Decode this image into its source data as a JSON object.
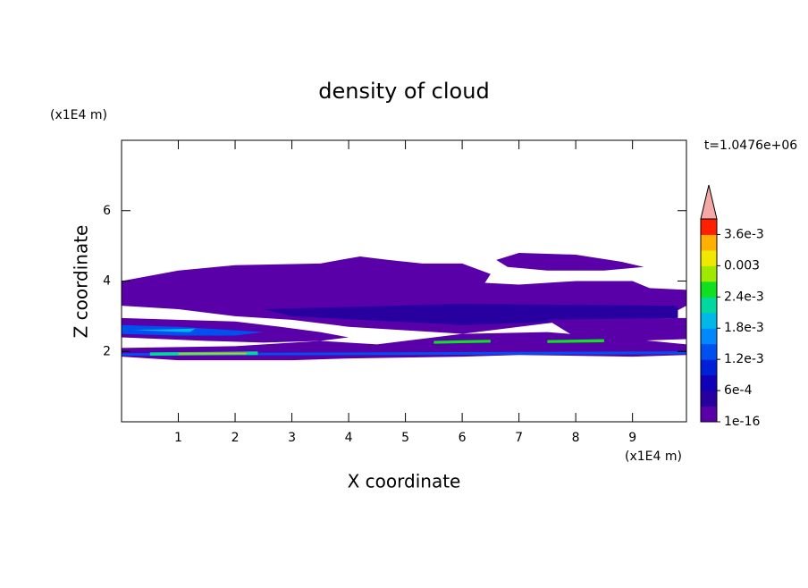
{
  "chart_data": {
    "type": "contour",
    "title": "density of cloud",
    "xlabel": "X coordinate",
    "ylabel": "Z coordinate",
    "xunit": "(x1E4 m)",
    "yunit": "(x1E4 m)",
    "annotation": "t=1.0476e+06",
    "xlim": [
      0,
      9.95
    ],
    "ylim": [
      0,
      8
    ],
    "xticks": [
      1,
      2,
      3,
      4,
      5,
      6,
      7,
      8,
      9
    ],
    "yticks": [
      2,
      4,
      6
    ],
    "colorbar": {
      "clim": [
        1e-16,
        0.0039
      ],
      "colors": [
        "#5a00a8",
        "#2800a0",
        "#1000b8",
        "#0020d8",
        "#0050f0",
        "#0088ff",
        "#00b8e8",
        "#00d8a0",
        "#10e020",
        "#a0e800",
        "#f0e800",
        "#ffb000",
        "#ff2000"
      ],
      "extend_color": "#f4a8a8",
      "ticks": [
        1e-16,
        {
          "value": 0.0006,
          "label": "6e-4"
        },
        {
          "value": 0.0012,
          "label": "1.2e-3"
        },
        {
          "value": 0.0018,
          "label": "1.8e-3"
        },
        {
          "value": 0.0024,
          "label": "2.4e-3"
        },
        0.003,
        {
          "value": 0.0036,
          "label": "3.6e-3"
        }
      ]
    },
    "contours": [
      {
        "color": "#5a00a8",
        "x": [
          0,
          0,
          1,
          2,
          3.5,
          4.2,
          4.7,
          5.3,
          6,
          6.5,
          6.4,
          7,
          8,
          9,
          9.3,
          9.95,
          9.95,
          9.6,
          9,
          8,
          7,
          6,
          5,
          4,
          3,
          2,
          1
        ],
        "z": [
          3.3,
          4.0,
          4.3,
          4.45,
          4.5,
          4.7,
          4.6,
          4.5,
          4.5,
          4.2,
          3.95,
          3.9,
          4.0,
          4.0,
          3.8,
          3.75,
          3.3,
          3.0,
          2.85,
          2.9,
          2.7,
          2.5,
          2.6,
          2.7,
          2.9,
          3.0,
          3.2
        ]
      },
      {
        "color": "#5a00a8",
        "x": [
          6.6,
          7,
          8,
          8.8,
          9.2,
          8.5,
          7.5,
          6.8
        ],
        "z": [
          4.6,
          4.8,
          4.75,
          4.55,
          4.4,
          4.3,
          4.3,
          4.4
        ]
      },
      {
        "color": "#2800a0",
        "x": [
          2.5,
          6,
          9.8,
          9.8,
          6,
          3
        ],
        "z": [
          3.2,
          3.35,
          3.3,
          2.95,
          2.75,
          3.0
        ]
      },
      {
        "color": "#5a00a8",
        "x": [
          0,
          0,
          1,
          2,
          2.8,
          3.5,
          4,
          3.5,
          2.5,
          1.5
        ],
        "z": [
          2.4,
          2.95,
          2.9,
          2.85,
          2.7,
          2.55,
          2.4,
          2.3,
          2.25,
          2.3
        ]
      },
      {
        "color": "#5a00a8",
        "x": [
          7.5,
          9.95,
          9.95,
          9,
          8
        ],
        "z": [
          2.9,
          2.95,
          2.35,
          2.3,
          2.4
        ]
      },
      {
        "color": "#5a00a8",
        "x": [
          0,
          0,
          2,
          3.5,
          4.5,
          6,
          7.5,
          9,
          9.95,
          9.95,
          9,
          7,
          6,
          4,
          3,
          1
        ],
        "z": [
          1.85,
          2.1,
          2.15,
          2.3,
          2.2,
          2.5,
          2.55,
          2.35,
          2.2,
          1.9,
          1.85,
          1.9,
          1.85,
          1.8,
          1.75,
          1.75
        ]
      },
      {
        "color": "#0050f0",
        "x": [
          0,
          0,
          1,
          2.5,
          2,
          1
        ],
        "z": [
          2.5,
          2.75,
          2.7,
          2.55,
          2.45,
          2.45
        ]
      },
      {
        "color": "#00b8e8",
        "x": [
          0.2,
          1.3,
          1.2
        ],
        "z": [
          2.6,
          2.65,
          2.55
        ]
      },
      {
        "color": "#0050f0",
        "x": [
          0,
          9.95,
          9.95,
          0
        ],
        "z": [
          1.95,
          2.0,
          1.92,
          1.88
        ]
      },
      {
        "color": "#00d8a0",
        "x": [
          0.5,
          2.4,
          2.4,
          0.5
        ],
        "z": [
          1.97,
          2.0,
          1.9,
          1.88
        ]
      },
      {
        "color": "#ffb000",
        "x": [
          1,
          2.2,
          2.2,
          1
        ],
        "z": [
          1.95,
          1.96,
          1.92,
          1.91
        ]
      },
      {
        "color": "#10e020",
        "x": [
          5.5,
          6.5,
          6.5,
          5.5
        ],
        "z": [
          2.3,
          2.33,
          2.25,
          2.22
        ]
      },
      {
        "color": "#10e020",
        "x": [
          7.5,
          8.5,
          8.5,
          7.5
        ],
        "z": [
          2.32,
          2.35,
          2.26,
          2.24
        ]
      }
    ]
  }
}
